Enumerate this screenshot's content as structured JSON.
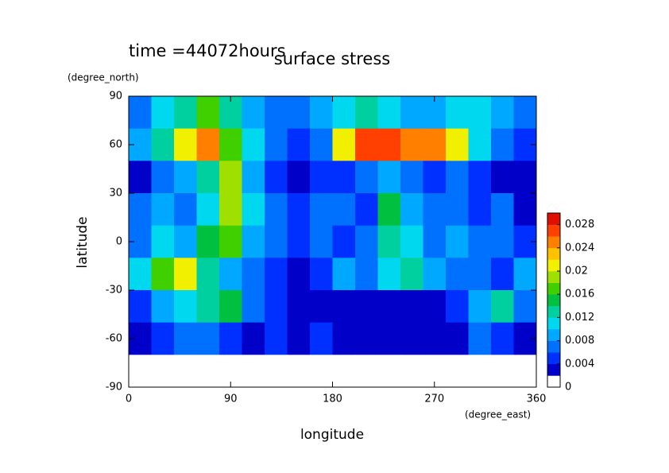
{
  "chart_data": {
    "type": "heatmap",
    "title": "surface stress",
    "subtitle": "time =44072hours",
    "x_label": "longitude",
    "x_unit": "(degree_east)",
    "y_label": "latitude",
    "y_unit": "(degree_north)",
    "x": [
      10,
      30,
      50,
      70,
      90,
      110,
      130,
      150,
      170,
      190,
      210,
      230,
      250,
      270,
      290,
      310,
      330,
      350
    ],
    "y": [
      80,
      60,
      40,
      20,
      0,
      -20,
      -40,
      -60,
      -80
    ],
    "z": [
      [
        0.006,
        0.01,
        0.012,
        0.016,
        0.012,
        0.008,
        0.006,
        0.006,
        0.008,
        0.01,
        0.012,
        0.01,
        0.008,
        0.008,
        0.01,
        0.01,
        0.008,
        0.006
      ],
      [
        0.008,
        0.012,
        0.02,
        0.024,
        0.016,
        0.01,
        0.006,
        0.004,
        0.006,
        0.02,
        0.026,
        0.026,
        0.024,
        0.024,
        0.02,
        0.01,
        0.006,
        0.004
      ],
      [
        0.002,
        0.006,
        0.008,
        0.012,
        0.018,
        0.008,
        0.004,
        0.002,
        0.004,
        0.004,
        0.006,
        0.008,
        0.006,
        0.004,
        0.006,
        0.004,
        0.002,
        0.002
      ],
      [
        0.006,
        0.008,
        0.006,
        0.01,
        0.018,
        0.01,
        0.006,
        0.004,
        0.006,
        0.006,
        0.004,
        0.014,
        0.008,
        0.006,
        0.006,
        0.004,
        0.006,
        0.002
      ],
      [
        0.006,
        0.01,
        0.008,
        0.014,
        0.016,
        0.008,
        0.006,
        0.004,
        0.006,
        0.004,
        0.006,
        0.012,
        0.01,
        0.006,
        0.008,
        0.006,
        0.006,
        0.004
      ],
      [
        0.01,
        0.016,
        0.02,
        0.012,
        0.008,
        0.006,
        0.004,
        0.002,
        0.004,
        0.008,
        0.006,
        0.01,
        0.012,
        0.008,
        0.006,
        0.006,
        0.004,
        0.008
      ],
      [
        0.004,
        0.008,
        0.01,
        0.012,
        0.014,
        0.006,
        0.004,
        0.002,
        0.002,
        0.002,
        0.002,
        0.002,
        0.002,
        0.002,
        0.004,
        0.008,
        0.012,
        0.006
      ],
      [
        0.002,
        0.004,
        0.006,
        0.006,
        0.004,
        0.002,
        0.004,
        0.002,
        0.004,
        0.002,
        0.002,
        0.002,
        0.002,
        0.002,
        0.002,
        0.006,
        0.004,
        0.002
      ],
      [
        0,
        0,
        0,
        0,
        0,
        0,
        0,
        0,
        0,
        0,
        0,
        0,
        0,
        0,
        0,
        0,
        0,
        0
      ]
    ],
    "xlim": [
      0,
      360
    ],
    "ylim": [
      -90,
      90
    ],
    "xticks": [
      0,
      90,
      180,
      270,
      360
    ],
    "yticks": [
      -90,
      -60,
      -30,
      0,
      30,
      60,
      90
    ],
    "clim": [
      0,
      0.03
    ],
    "cticks": [
      0,
      0.004,
      0.008,
      0.012,
      0.016,
      0.02,
      0.024,
      0.028
    ],
    "colors": [
      "#ffffff",
      "#0000c8",
      "#0030ff",
      "#0070ff",
      "#00a8ff",
      "#00d8f0",
      "#00d0a0",
      "#00c040",
      "#40d000",
      "#a0e000",
      "#f0f000",
      "#ffc000",
      "#ff8000",
      "#ff4000",
      "#e01000"
    ]
  }
}
